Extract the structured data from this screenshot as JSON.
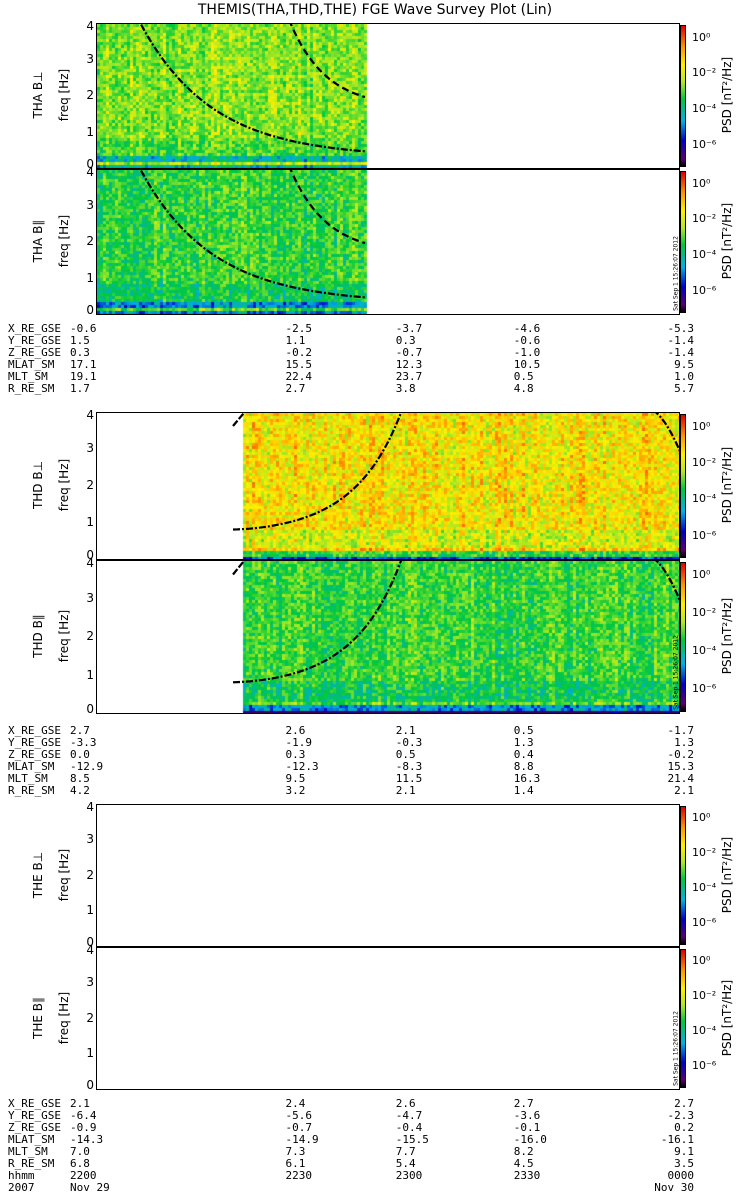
{
  "title": "THEMIS(THA,THD,THE) FGE Wave Survey Plot (Lin)",
  "freq_label": "freq [Hz]",
  "colorbar": {
    "label": "PSD [nT²/Hz]",
    "ticks": [
      "10⁰",
      "10⁻²",
      "10⁻⁴",
      "10⁻⁶"
    ],
    "stamp": "Sat Sep  1 15:26:07 2012"
  },
  "colors": {
    "low": "#5a0070",
    "mid": "#00c000",
    "high": "#e00000",
    "curve": "#000000"
  },
  "chart_data": [
    {
      "type": "heatmap",
      "probe": "THA",
      "component": "B⊥",
      "ylabel": "THA B⊥",
      "ylim": [
        0,
        4
      ],
      "yticks": [
        "0",
        "1",
        "2",
        "3",
        "4"
      ],
      "xlim": [
        "22:00",
        "00:00"
      ],
      "data_extent": [
        "22:00",
        "22:55"
      ],
      "background_level": "green-yellow",
      "strong_band_hz": [
        0.1,
        0.3
      ]
    },
    {
      "type": "heatmap",
      "probe": "THA",
      "component": "B∥",
      "ylabel": "THA B∥",
      "ylim": [
        0,
        4
      ],
      "yticks": [
        "0",
        "1",
        "2",
        "3",
        "4"
      ],
      "xlim": [
        "22:00",
        "00:00"
      ],
      "data_extent": [
        "22:00",
        "22:55"
      ],
      "background_level": "green",
      "strong_band_hz": [
        0.1,
        0.3
      ]
    },
    {
      "type": "heatmap",
      "probe": "THD",
      "component": "B⊥",
      "ylabel": "THD B⊥",
      "ylim": [
        0,
        4
      ],
      "yticks": [
        "0",
        "1",
        "2",
        "3",
        "4"
      ],
      "xlim": [
        "22:00",
        "00:00"
      ],
      "data_extent": [
        "22:30",
        "00:00"
      ],
      "background_level": "yellow-orange",
      "strong_band_hz": [
        0.1,
        0.6
      ]
    },
    {
      "type": "heatmap",
      "probe": "THD",
      "component": "B∥",
      "ylabel": "THD B∥",
      "ylim": [
        0,
        4
      ],
      "yticks": [
        "0",
        "1",
        "2",
        "3",
        "4"
      ],
      "xlim": [
        "22:00",
        "00:00"
      ],
      "data_extent": [
        "22:30",
        "00:00"
      ],
      "background_level": "green",
      "strong_band_hz": [
        0.1,
        0.6
      ]
    },
    {
      "type": "heatmap",
      "probe": "THE",
      "component": "B⊥",
      "ylabel": "THE B⊥",
      "ylim": [
        0,
        4
      ],
      "yticks": [
        "0",
        "1",
        "2",
        "3",
        "4"
      ],
      "xlim": [
        "22:00",
        "00:00"
      ],
      "data_extent": null
    },
    {
      "type": "heatmap",
      "probe": "THE",
      "component": "B∥",
      "ylabel": "THE B∥",
      "ylim": [
        0,
        4
      ],
      "yticks": [
        "0",
        "1",
        "2",
        "3",
        "4"
      ],
      "xlim": [
        "22:00",
        "00:00"
      ],
      "data_extent": null
    }
  ],
  "ephemeris": [
    {
      "labels": [
        "X_RE_GSE",
        "Y_RE_GSE",
        "Z_RE_GSE",
        "MLAT_SM",
        "MLT_SM",
        "R_RE_SM"
      ],
      "values": [
        [
          "-0.6",
          "-2.5",
          "-3.7",
          "-4.6",
          "-5.3"
        ],
        [
          "1.5",
          "1.1",
          "0.3",
          "-0.6",
          "-1.4"
        ],
        [
          "0.3",
          "-0.2",
          "-0.7",
          "-1.0",
          "-1.4"
        ],
        [
          "17.1",
          "15.5",
          "12.3",
          "10.5",
          "9.5"
        ],
        [
          "19.1",
          "22.4",
          "23.7",
          "0.5",
          "1.0"
        ],
        [
          "1.7",
          "2.7",
          "3.8",
          "4.8",
          "5.7"
        ]
      ]
    },
    {
      "labels": [
        "X_RE_GSE",
        "Y_RE_GSE",
        "Z_RE_GSE",
        "MLAT_SM",
        "MLT_SM",
        "R_RE_SM"
      ],
      "values": [
        [
          "2.7",
          "2.6",
          "2.1",
          "0.5",
          "-1.7"
        ],
        [
          "-3.3",
          "-1.9",
          "-0.3",
          "1.3",
          "1.3"
        ],
        [
          "0.0",
          "0.3",
          "0.5",
          "0.4",
          "-0.2"
        ],
        [
          "-12.9",
          "-12.3",
          "-8.3",
          "8.8",
          "15.3"
        ],
        [
          "8.5",
          "9.5",
          "11.5",
          "16.3",
          "21.4"
        ],
        [
          "4.2",
          "3.2",
          "2.1",
          "1.4",
          "2.1"
        ]
      ]
    },
    {
      "labels": [
        "X_RE_GSE",
        "Y_RE_GSE",
        "Z_RE_GSE",
        "MLAT_SM",
        "MLT_SM",
        "R_RE_SM",
        "hhmm",
        "2007"
      ],
      "values": [
        [
          "2.1",
          "2.4",
          "2.6",
          "2.7",
          "2.7"
        ],
        [
          "-6.4",
          "-5.6",
          "-4.7",
          "-3.6",
          "-2.3"
        ],
        [
          "-0.9",
          "-0.7",
          "-0.4",
          "-0.1",
          "0.2"
        ],
        [
          "-14.3",
          "-14.9",
          "-15.5",
          "-16.0",
          "-16.1"
        ],
        [
          "7.0",
          "7.3",
          "7.7",
          "8.2",
          "9.1"
        ],
        [
          "6.8",
          "6.1",
          "5.4",
          "4.5",
          "3.5"
        ],
        [
          "2200",
          "2230",
          "2300",
          "2330",
          "0000"
        ],
        [
          "Nov 29",
          "",
          "",
          "",
          "Nov 30"
        ]
      ]
    }
  ]
}
